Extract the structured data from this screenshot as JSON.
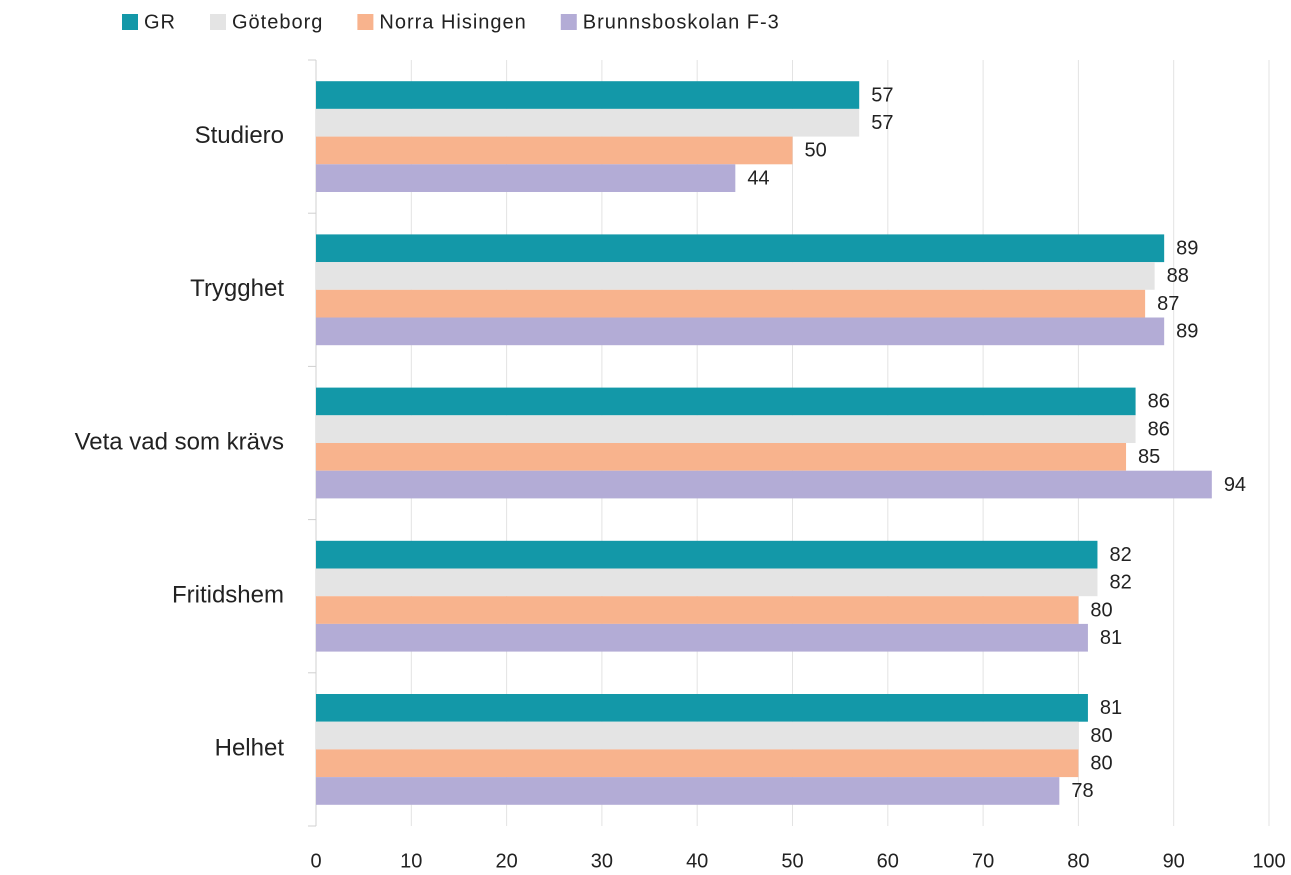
{
  "chart_data": {
    "type": "bar",
    "orientation": "horizontal",
    "categories": [
      "Studiero",
      "Trygghet",
      "Veta vad som krävs",
      "Fritidshem",
      "Helhet"
    ],
    "series": [
      {
        "name": "GR",
        "color": "#1398a8",
        "values": [
          57,
          89,
          86,
          82,
          81
        ]
      },
      {
        "name": "Göteborg",
        "color": "#e4e4e4",
        "values": [
          57,
          88,
          86,
          82,
          80
        ]
      },
      {
        "name": "Norra Hisingen",
        "color": "#f8b38d",
        "values": [
          50,
          87,
          85,
          80,
          80
        ]
      },
      {
        "name": "Brunnsboskolan F-3",
        "color": "#b3acd6",
        "values": [
          44,
          89,
          94,
          81,
          78
        ]
      }
    ],
    "xlim": [
      0,
      100
    ],
    "xticks": [
      0,
      10,
      20,
      30,
      40,
      50,
      60,
      70,
      80,
      90,
      100
    ],
    "grid": true,
    "legend": "top"
  }
}
